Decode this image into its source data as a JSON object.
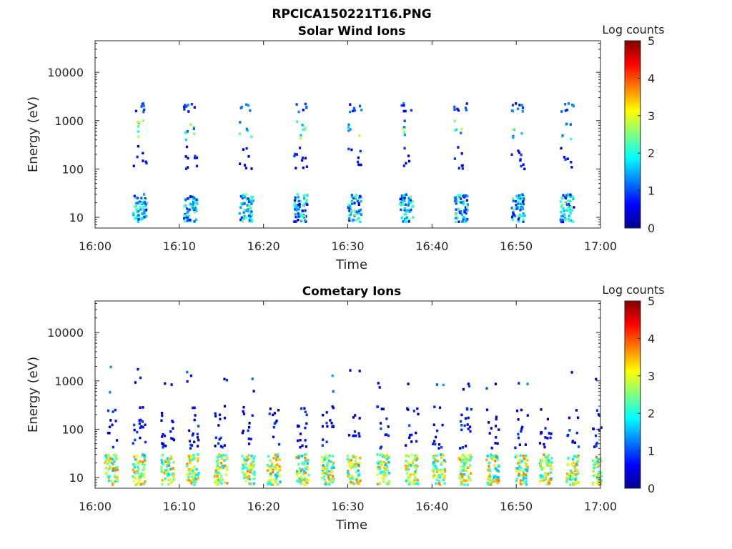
{
  "figure": {
    "title": "RPCICA150221T16.PNG"
  },
  "chart_data": [
    {
      "type": "heatmap",
      "title": "Solar Wind Ions",
      "xlabel": "Time",
      "ylabel": "Energy (eV)",
      "x_ticks": [
        "16:00",
        "16:10",
        "16:20",
        "16:30",
        "16:40",
        "16:50",
        "17:00"
      ],
      "xlim": [
        "16:00",
        "17:00"
      ],
      "y_scale": "log",
      "y_ticks": [
        10,
        100,
        1000,
        10000
      ],
      "y_tick_labels": [
        "10",
        "100",
        "1000",
        "10000"
      ],
      "ylim": [
        6,
        45000
      ],
      "colorbar": {
        "label": "Log counts",
        "range": [
          0,
          5
        ],
        "ticks": [
          "0",
          "1",
          "2",
          "3",
          "4",
          "5"
        ],
        "colormap": "jet"
      },
      "grid": false,
      "pulse_times_min": [
        4.9,
        10.9,
        17.5,
        24.0,
        30.4,
        36.5,
        43.0,
        49.8,
        55.6
      ],
      "features": [
        {
          "energy_ev": [
            8,
            30
          ],
          "log_counts": [
            0.5,
            2.5
          ],
          "description": "low-energy bursts at each pulse"
        },
        {
          "energy_ev": [
            100,
            300
          ],
          "log_counts": [
            0.3,
            1.0
          ]
        },
        {
          "energy_ev": [
            400,
            1000
          ],
          "log_counts": [
            1.0,
            3.0
          ]
        },
        {
          "energy_ev": [
            1500,
            2300
          ],
          "log_counts": [
            0.5,
            1.5
          ]
        }
      ]
    },
    {
      "type": "heatmap",
      "title": "Cometary Ions",
      "xlabel": "Time",
      "ylabel": "Energy (eV)",
      "x_ticks": [
        "16:00",
        "16:10",
        "16:20",
        "16:30",
        "16:40",
        "16:50",
        "17:00"
      ],
      "xlim": [
        "16:00",
        "17:00"
      ],
      "y_scale": "log",
      "y_ticks": [
        10,
        100,
        1000,
        10000
      ],
      "y_tick_labels": [
        "10",
        "100",
        "1000",
        "10000"
      ],
      "ylim": [
        6,
        45000
      ],
      "colorbar": {
        "label": "Log counts",
        "range": [
          0,
          5
        ],
        "ticks": [
          "0",
          "1",
          "2",
          "3",
          "4",
          "5"
        ],
        "colormap": "jet"
      },
      "grid": false,
      "pulse_times_min": [
        1.5,
        4.8,
        8.2,
        11.2,
        14.5,
        17.8,
        20.8,
        24.2,
        27.2,
        30.3,
        33.8,
        37.2,
        40.4,
        43.5,
        46.8,
        50.2,
        53.1,
        56.3,
        59.4
      ],
      "features": [
        {
          "energy_ev": [
            7,
            30
          ],
          "log_counts": [
            1.5,
            3.8
          ],
          "description": "dense low-energy bands, peaks near 4"
        },
        {
          "energy_ev": [
            40,
            300
          ],
          "log_counts": [
            0.2,
            1.0
          ]
        },
        {
          "energy_ev": [
            500,
            2000
          ],
          "log_counts": [
            0.3,
            1.5
          ],
          "description": "sparse high-energy points"
        }
      ]
    }
  ]
}
